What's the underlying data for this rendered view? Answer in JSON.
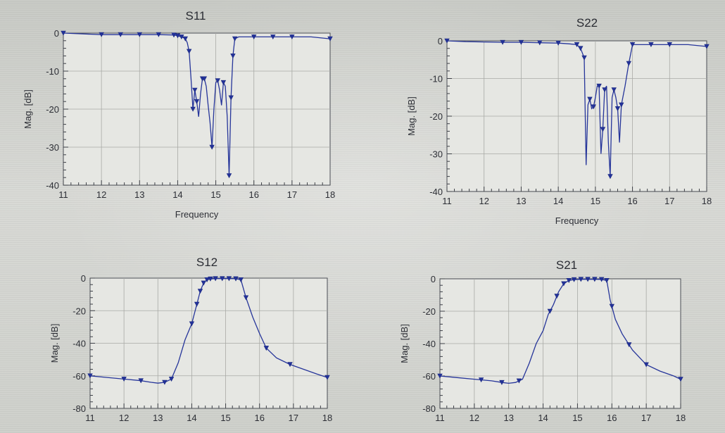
{
  "chart_data": [
    {
      "id": "s11",
      "type": "line",
      "title": "S11",
      "xlabel": "Frequency",
      "ylabel": "Mag. [dB]",
      "xlim": [
        11,
        18
      ],
      "ylim": [
        -40,
        0
      ],
      "xticks": [
        "11",
        "12",
        "13",
        "14",
        "15",
        "16",
        "17",
        "18"
      ],
      "yticks": [
        "0",
        "-10",
        "-20",
        "-30",
        "-40"
      ],
      "grid": true,
      "series": [
        {
          "x": [
            11.0,
            11.5,
            12.0,
            12.5,
            13.0,
            13.5,
            13.9,
            14.0,
            14.1,
            14.15,
            14.2,
            14.25,
            14.3,
            14.35,
            14.4,
            14.45,
            14.5,
            14.55,
            14.6,
            14.65,
            14.7,
            14.75,
            14.8,
            14.85,
            14.9,
            14.95,
            15.0,
            15.05,
            15.1,
            15.15,
            15.2,
            15.25,
            15.3,
            15.35,
            15.4,
            15.45,
            15.5,
            15.6,
            16.0,
            16.5,
            17.0,
            17.5,
            18.0
          ],
          "y": [
            0,
            -0.2,
            -0.4,
            -0.4,
            -0.4,
            -0.4,
            -0.5,
            -0.7,
            -1,
            -1.2,
            -1.5,
            -2.5,
            -4.8,
            -12,
            -20,
            -15,
            -18,
            -22,
            -16,
            -12,
            -12,
            -14,
            -19,
            -23.5,
            -30,
            -20,
            -13,
            -12.5,
            -15,
            -19,
            -13,
            -14,
            -22,
            -37.5,
            -17,
            -6,
            -1.5,
            -1,
            -1,
            -1,
            -1,
            -1,
            -1.5
          ]
        }
      ],
      "marker_x": [
        11.0,
        12.0,
        12.5,
        13.0,
        13.5,
        13.9,
        14.0,
        14.1,
        14.2,
        14.3,
        14.4,
        14.45,
        14.5,
        14.65,
        14.7,
        14.9,
        15.05,
        15.2,
        15.35,
        15.4,
        15.45,
        15.5,
        16.0,
        16.5,
        17.0,
        18.0
      ]
    },
    {
      "id": "s22",
      "type": "line",
      "title": "S22",
      "xlabel": "Frequency",
      "ylabel": "Mag. [dB]",
      "xlim": [
        11,
        18
      ],
      "ylim": [
        -40,
        0
      ],
      "xticks": [
        "11",
        "12",
        "13",
        "14",
        "15",
        "16",
        "17",
        "18"
      ],
      "yticks": [
        "0",
        "-10",
        "-20",
        "-30",
        "-40"
      ],
      "grid": true,
      "series": [
        {
          "x": [
            11.0,
            11.5,
            12.0,
            12.5,
            13.0,
            13.5,
            14.0,
            14.3,
            14.5,
            14.6,
            14.7,
            14.75,
            14.8,
            14.85,
            14.9,
            14.95,
            15.0,
            15.05,
            15.1,
            15.15,
            15.2,
            15.25,
            15.3,
            15.35,
            15.4,
            15.45,
            15.5,
            15.55,
            15.6,
            15.65,
            15.7,
            15.8,
            15.9,
            16.0,
            16.2,
            16.5,
            17.0,
            17.5,
            18.0
          ],
          "y": [
            0,
            -0.2,
            -0.3,
            -0.4,
            -0.4,
            -0.5,
            -0.6,
            -0.8,
            -1,
            -2,
            -4.5,
            -33,
            -17,
            -15.5,
            -18,
            -17.5,
            -15,
            -12,
            -12,
            -30,
            -23.5,
            -13,
            -12,
            -27,
            -36,
            -15,
            -13,
            -15,
            -18,
            -27,
            -17,
            -12,
            -6,
            -1,
            -1,
            -1,
            -1,
            -1,
            -1.5
          ]
        }
      ],
      "marker_x": [
        11.0,
        12.5,
        13.0,
        13.5,
        14.0,
        14.5,
        14.6,
        14.7,
        14.85,
        14.95,
        15.1,
        15.2,
        15.25,
        15.4,
        15.5,
        15.6,
        15.7,
        15.9,
        16.0,
        16.5,
        17.0,
        18.0
      ]
    },
    {
      "id": "s12",
      "type": "line",
      "title": "S12",
      "xlabel": "",
      "ylabel": "Mag. [dB]",
      "xlim": [
        11,
        18
      ],
      "ylim": [
        -80,
        0
      ],
      "xticks": [
        "11",
        "12",
        "13",
        "14",
        "15",
        "16",
        "17",
        "18"
      ],
      "yticks": [
        "0",
        "-20",
        "-40",
        "-60",
        "-80"
      ],
      "grid": true,
      "series": [
        {
          "x": [
            11.0,
            11.5,
            12.0,
            12.5,
            12.8,
            13.0,
            13.2,
            13.4,
            13.6,
            13.8,
            14.0,
            14.15,
            14.25,
            14.35,
            14.45,
            14.55,
            14.7,
            14.9,
            15.1,
            15.3,
            15.45,
            15.6,
            15.8,
            16.0,
            16.2,
            16.5,
            16.9,
            17.3,
            17.7,
            18.0
          ],
          "y": [
            -60,
            -61,
            -62,
            -63,
            -64,
            -64.5,
            -64,
            -62,
            -52,
            -38,
            -28,
            -16,
            -8,
            -3,
            -1,
            -0.5,
            -0.3,
            -0.3,
            -0.3,
            -0.4,
            -1,
            -12,
            -24,
            -34,
            -43,
            -49,
            -53,
            -56,
            -59,
            -61
          ]
        }
      ],
      "marker_x": [
        11.0,
        12.0,
        12.5,
        13.2,
        13.4,
        14.0,
        14.15,
        14.25,
        14.35,
        14.45,
        14.55,
        14.7,
        14.9,
        15.1,
        15.3,
        15.45,
        15.6,
        16.2,
        16.9,
        18.0
      ]
    },
    {
      "id": "s21",
      "type": "line",
      "title": "S21",
      "xlabel": "",
      "ylabel": "Mag. [dB]",
      "xlim": [
        11,
        18
      ],
      "ylim": [
        -80,
        0
      ],
      "xticks": [
        "11",
        "12",
        "13",
        "14",
        "15",
        "16",
        "17",
        "18"
      ],
      "yticks": [
        "0",
        "-20",
        "-40",
        "-60",
        "-80"
      ],
      "grid": true,
      "series": [
        {
          "x": [
            11.0,
            11.5,
            12.0,
            12.5,
            12.8,
            13.0,
            13.2,
            13.4,
            13.6,
            13.8,
            14.0,
            14.15,
            14.3,
            14.45,
            14.6,
            14.75,
            14.9,
            15.1,
            15.3,
            15.5,
            15.7,
            15.85,
            15.95,
            16.1,
            16.3,
            16.6,
            17.0,
            17.4,
            17.8,
            18.0
          ],
          "y": [
            -60,
            -61,
            -62,
            -63,
            -64,
            -64.5,
            -64,
            -62,
            -52,
            -40,
            -32,
            -22,
            -16,
            -8,
            -3,
            -1,
            -0.5,
            -0.3,
            -0.3,
            -0.3,
            -0.4,
            -1,
            -13,
            -25,
            -34,
            -44,
            -53,
            -57,
            -60,
            -62
          ]
        }
      ],
      "marker_x": [
        11.0,
        12.2,
        12.8,
        13.3,
        14.2,
        14.4,
        14.6,
        14.75,
        14.9,
        15.1,
        15.3,
        15.5,
        15.7,
        15.85,
        16.0,
        16.5,
        17.0,
        18.0
      ]
    }
  ]
}
